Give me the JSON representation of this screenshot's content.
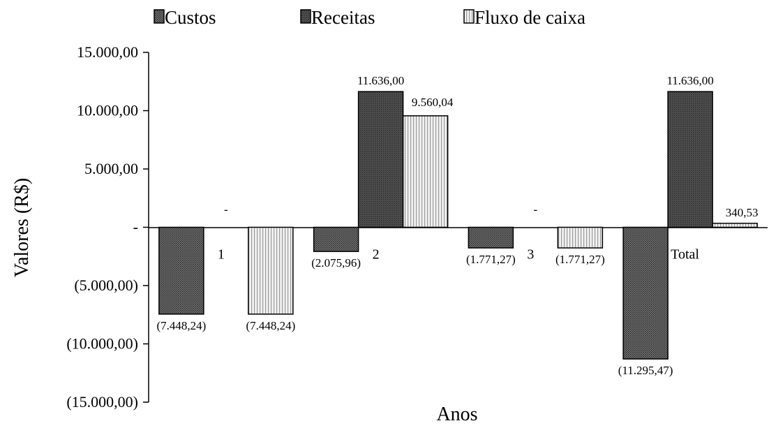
{
  "chart_data": {
    "type": "bar",
    "title": "",
    "xlabel": "Anos",
    "ylabel": "Valores (R$)",
    "ylim": [
      -15000,
      15000
    ],
    "yticks": [
      15000,
      10000,
      5000,
      0,
      -5000,
      -10000,
      -15000
    ],
    "ytick_labels": [
      "15.000,00",
      "10.000,00",
      "5.000,00",
      "-",
      "(5.000,00)",
      "(10.000,00)",
      "(15.000,00)"
    ],
    "categories": [
      "1",
      "2",
      "3",
      "Total"
    ],
    "legend_position": "top",
    "grid": false,
    "series": [
      {
        "name": "Custos",
        "pattern": "dense-dots",
        "color": "#5a5a5a",
        "values": [
          -7448.24,
          -2075.96,
          -1771.27,
          -11295.47
        ],
        "labels": [
          "(7.448,24)",
          "(2.075,96)",
          "(1.771,27)",
          "(11.295,47)"
        ]
      },
      {
        "name": "Receitas",
        "pattern": "dark-dots",
        "color": "#444444",
        "values": [
          0,
          11636.0,
          0,
          11636.0
        ],
        "labels": [
          "-",
          "11.636,00",
          "-",
          "11.636,00"
        ]
      },
      {
        "name": "Fluxo de caixa",
        "pattern": "vertical-lines",
        "color": "#e6e6e6",
        "values": [
          -7448.24,
          9560.04,
          -1771.27,
          340.53
        ],
        "labels": [
          "(7.448,24)",
          "9.560,04",
          "(1.771,27)",
          "340,53"
        ]
      }
    ]
  }
}
